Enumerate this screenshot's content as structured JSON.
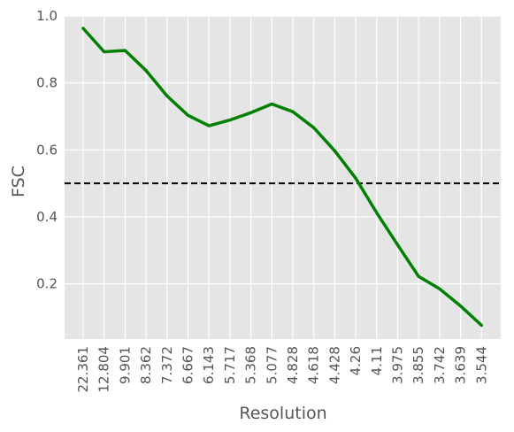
{
  "chart_data": {
    "type": "line",
    "title": "",
    "xlabel": "Resolution",
    "ylabel": "FSC",
    "categories": [
      "22.361",
      "12.804",
      "9.901",
      "8.362",
      "7.372",
      "6.667",
      "6.143",
      "5.717",
      "5.368",
      "5.077",
      "4.828",
      "4.618",
      "4.428",
      "4.26",
      "4.11",
      "3.975",
      "3.855",
      "3.742",
      "3.639",
      "3.544"
    ],
    "series": [
      {
        "values": [
          0.963,
          0.893,
          0.897,
          0.837,
          0.761,
          0.703,
          0.672,
          0.689,
          0.711,
          0.737,
          0.714,
          0.666,
          0.597,
          0.515,
          0.412,
          0.316,
          0.222,
          0.185,
          0.134,
          0.076
        ],
        "color": "#008000"
      }
    ],
    "reference_line": {
      "y": 0.5,
      "style": "dashed",
      "color": "#000000"
    },
    "ylim": [
      0.035,
      1.0
    ],
    "yticks": [
      "0.2",
      "0.4",
      "0.6",
      "0.8",
      "1.0"
    ],
    "grid": true,
    "background": "#e5e5e5",
    "grid_color": "#ffffff"
  }
}
